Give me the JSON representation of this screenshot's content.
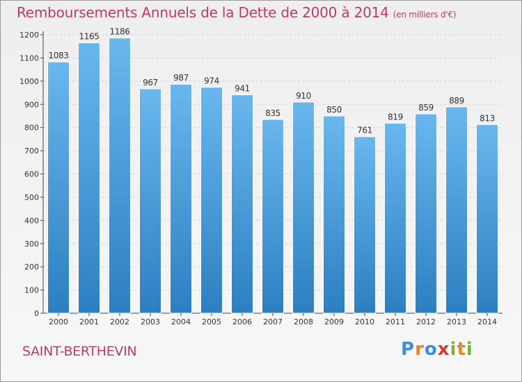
{
  "title": "Remboursements Annuels de la Dette de 2000 à 2014",
  "subtitle": "(en milliers d'€)",
  "commune": "SAINT-BERTHEVIN",
  "logo": {
    "letters": [
      "P",
      "r",
      "o",
      "x",
      "i",
      "t",
      "i"
    ],
    "colors": [
      "#3d8fd1",
      "#e8832a",
      "#3d8fd1",
      "#d63a3a",
      "#7bb33a",
      "#e8832a",
      "#7bb33a"
    ]
  },
  "colors": {
    "bar_light": "#6ab7ee",
    "bar_dark": "#2c7fc1",
    "accent": "#c0386b"
  },
  "chart_data": {
    "type": "bar",
    "title": "Remboursements Annuels de la Dette de 2000 à 2014",
    "xlabel": "",
    "ylabel": "en milliers d'€",
    "categories": [
      "2000",
      "2001",
      "2002",
      "2003",
      "2004",
      "2005",
      "2006",
      "2007",
      "2008",
      "2009",
      "2010",
      "2011",
      "2012",
      "2013",
      "2014"
    ],
    "values": [
      1083,
      1165,
      1186,
      967,
      987,
      974,
      941,
      835,
      910,
      850,
      761,
      819,
      859,
      889,
      813
    ],
    "ylim": [
      0,
      1200
    ],
    "yticks": [
      0,
      100,
      200,
      300,
      400,
      500,
      600,
      700,
      800,
      900,
      1000,
      1100,
      1200
    ],
    "grid": true
  }
}
